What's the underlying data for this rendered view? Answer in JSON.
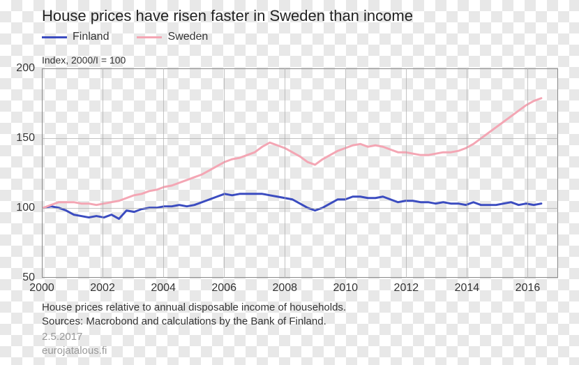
{
  "chart": {
    "type": "line",
    "title": "House prices have risen faster in Sweden than income",
    "subtitle": "Index, 2000/I = 100",
    "background_color": "transparent",
    "plot_border_color": "#888888",
    "grid_color": "#aaaaaa",
    "title_fontsize": 22,
    "label_fontsize": 16,
    "subtitle_fontsize": 14,
    "caption_fontsize": 15,
    "x": {
      "min": 2000,
      "max": 2017,
      "ticks": [
        2000,
        2002,
        2004,
        2006,
        2008,
        2010,
        2012,
        2014,
        2016
      ]
    },
    "y": {
      "min": 50,
      "max": 200,
      "ticks": [
        50,
        100,
        150,
        200
      ]
    },
    "legend": {
      "position": "top-left",
      "items": [
        {
          "label": "Finland",
          "color": "#3b4cc0"
        },
        {
          "label": "Sweden",
          "color": "#f4a6b4"
        }
      ]
    },
    "series": [
      {
        "name": "Finland",
        "color": "#3b4cc0",
        "line_width": 3,
        "x": [
          2000.0,
          2000.25,
          2000.5,
          2000.75,
          2001.0,
          2001.25,
          2001.5,
          2001.75,
          2002.0,
          2002.25,
          2002.5,
          2002.75,
          2003.0,
          2003.25,
          2003.5,
          2003.75,
          2004.0,
          2004.25,
          2004.5,
          2004.75,
          2005.0,
          2005.25,
          2005.5,
          2005.75,
          2006.0,
          2006.25,
          2006.5,
          2006.75,
          2007.0,
          2007.25,
          2007.5,
          2007.75,
          2008.0,
          2008.25,
          2008.5,
          2008.75,
          2009.0,
          2009.25,
          2009.5,
          2009.75,
          2010.0,
          2010.25,
          2010.5,
          2010.75,
          2011.0,
          2011.25,
          2011.5,
          2011.75,
          2012.0,
          2012.25,
          2012.5,
          2012.75,
          2013.0,
          2013.25,
          2013.5,
          2013.75,
          2014.0,
          2014.25,
          2014.5,
          2014.75,
          2015.0,
          2015.25,
          2015.5,
          2015.75,
          2016.0,
          2016.25,
          2016.5
        ],
        "y": [
          100,
          101,
          100,
          98,
          95,
          94,
          93,
          94,
          93,
          95,
          92,
          98,
          97,
          99,
          100,
          100,
          101,
          101,
          102,
          101,
          102,
          104,
          106,
          108,
          110,
          109,
          110,
          110,
          110,
          110,
          109,
          108,
          107,
          106,
          103,
          100,
          98,
          100,
          103,
          106,
          106,
          108,
          108,
          107,
          107,
          108,
          106,
          104,
          105,
          105,
          104,
          104,
          103,
          104,
          103,
          103,
          102,
          104,
          102,
          102,
          102,
          103,
          104,
          102,
          103,
          102,
          103
        ]
      },
      {
        "name": "Sweden",
        "color": "#f4a6b4",
        "line_width": 3,
        "x": [
          2000.0,
          2000.25,
          2000.5,
          2000.75,
          2001.0,
          2001.25,
          2001.5,
          2001.75,
          2002.0,
          2002.25,
          2002.5,
          2002.75,
          2003.0,
          2003.25,
          2003.5,
          2003.75,
          2004.0,
          2004.25,
          2004.5,
          2004.75,
          2005.0,
          2005.25,
          2005.5,
          2005.75,
          2006.0,
          2006.25,
          2006.5,
          2006.75,
          2007.0,
          2007.25,
          2007.5,
          2007.75,
          2008.0,
          2008.25,
          2008.5,
          2008.75,
          2009.0,
          2009.25,
          2009.5,
          2009.75,
          2010.0,
          2010.25,
          2010.5,
          2010.75,
          2011.0,
          2011.25,
          2011.5,
          2011.75,
          2012.0,
          2012.25,
          2012.5,
          2012.75,
          2013.0,
          2013.25,
          2013.5,
          2013.75,
          2014.0,
          2014.25,
          2014.5,
          2014.75,
          2015.0,
          2015.25,
          2015.5,
          2015.75,
          2016.0,
          2016.25,
          2016.5
        ],
        "y": [
          100,
          102,
          104,
          104,
          104,
          103,
          103,
          102,
          103,
          104,
          105,
          107,
          109,
          110,
          112,
          113,
          115,
          116,
          118,
          120,
          122,
          124,
          127,
          130,
          133,
          135,
          136,
          138,
          140,
          144,
          147,
          145,
          143,
          140,
          137,
          133,
          131,
          135,
          138,
          141,
          143,
          145,
          146,
          144,
          145,
          144,
          142,
          140,
          140,
          139,
          138,
          138,
          139,
          140,
          140,
          141,
          143,
          146,
          150,
          154,
          158,
          162,
          166,
          170,
          174,
          177,
          179
        ]
      }
    ],
    "caption_line1": "House prices relative to annual disposable income of households.",
    "caption_line2": "Sources: Macrobond and calculations by the Bank of Finland.",
    "date_text": "2.5.2017",
    "site_text": "eurojatalous.fi"
  }
}
